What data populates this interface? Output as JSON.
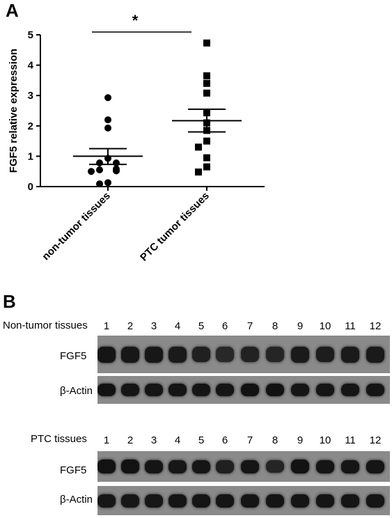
{
  "panel_a": {
    "letter": "A",
    "significance": "*"
  },
  "chart_data": {
    "type": "scatter",
    "title": "",
    "xlabel": "",
    "ylabel": "FGF5 relative expression",
    "ylim": [
      0,
      5
    ],
    "yticks": [
      "0",
      "1",
      "2",
      "3",
      "4",
      "5"
    ],
    "categories": [
      "non-tumor tissues",
      "PTC tumor tissues"
    ],
    "series": [
      {
        "category": "non-tumor tissues",
        "marker": "circle",
        "values": [
          2.93,
          2.2,
          1.93,
          0.93,
          0.78,
          0.78,
          0.58,
          0.55,
          0.52,
          0.5,
          0.13,
          0.09
        ],
        "mean": 1.0,
        "sem_low": 0.73,
        "sem_high": 1.25
      },
      {
        "category": "PTC tumor tissues",
        "marker": "square",
        "values": [
          4.73,
          3.65,
          3.4,
          3.08,
          2.43,
          2.1,
          1.85,
          1.5,
          1.3,
          0.95,
          0.65,
          0.48
        ],
        "mean": 2.17,
        "sem_low": 1.8,
        "sem_high": 2.55
      }
    ],
    "color": "#000000"
  },
  "panel_b": {
    "letter": "B",
    "lanes": [
      "1",
      "2",
      "3",
      "4",
      "5",
      "6",
      "7",
      "8",
      "9",
      "10",
      "11",
      "12"
    ],
    "gel1": {
      "header": "Non-tumor tissues",
      "fgf5_label": "FGF5",
      "actin_label": "β-Actin",
      "fgf5_intensity": [
        0.9,
        0.85,
        0.85,
        0.8,
        0.7,
        0.55,
        0.65,
        0.6,
        0.8,
        0.75,
        0.8,
        0.8
      ],
      "actin_intensity": [
        0.95,
        0.9,
        0.9,
        0.9,
        0.9,
        0.9,
        0.95,
        0.95,
        0.9,
        0.9,
        0.9,
        0.9
      ]
    },
    "gel2": {
      "header": "PTC tissues",
      "fgf5_label": "FGF5",
      "actin_label": "β-Actin",
      "fgf5_intensity": [
        0.95,
        0.95,
        0.9,
        0.85,
        0.9,
        0.7,
        0.9,
        0.6,
        0.95,
        0.9,
        0.9,
        0.9
      ],
      "actin_intensity": [
        0.85,
        0.85,
        0.85,
        0.9,
        0.9,
        0.9,
        0.9,
        0.9,
        0.9,
        0.9,
        0.9,
        0.9
      ]
    }
  }
}
